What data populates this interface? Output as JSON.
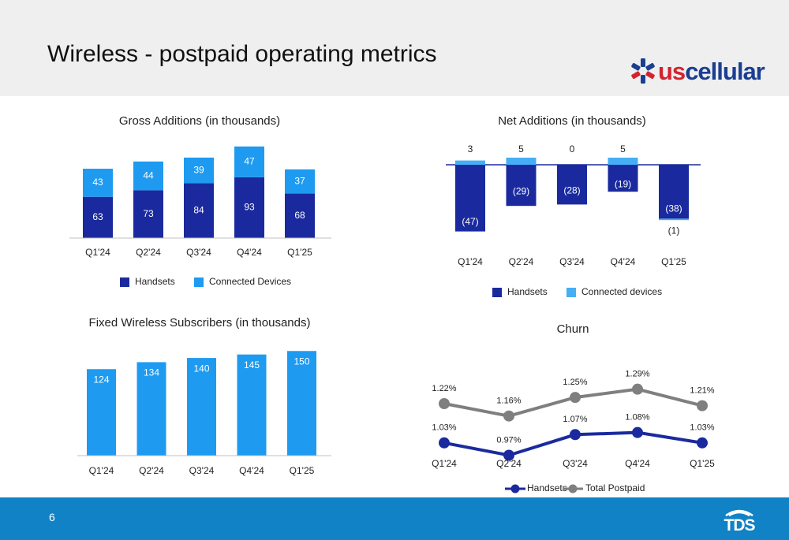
{
  "page": {
    "title": "Wireless - postpaid operating metrics",
    "number": "6",
    "brand": {
      "logo_part1": "us",
      "logo_part2": "cellular",
      "footer_logo": "TDS"
    }
  },
  "colors": {
    "handsets": "#1a2a9e",
    "devices": "#1e9bf0",
    "devices_net": "#45aef5",
    "churn_handsets": "#1a2a9e",
    "churn_total": "#7f7f7f"
  },
  "chart_data": [
    {
      "type": "bar",
      "stacked": true,
      "title": "Gross Additions (in thousands)",
      "categories": [
        "Q1'24",
        "Q2'24",
        "Q3'24",
        "Q4'24",
        "Q1'25"
      ],
      "series": [
        {
          "name": "Handsets",
          "values": [
            63,
            73,
            84,
            93,
            68
          ],
          "labels": [
            "63",
            "73",
            "84",
            "93",
            "68"
          ]
        },
        {
          "name": "Connected Devices",
          "values": [
            43,
            44,
            39,
            47,
            37
          ],
          "labels": [
            "43",
            "44",
            "39",
            "47",
            "37"
          ]
        }
      ],
      "legend": "bottom"
    },
    {
      "type": "bar",
      "stacked": true,
      "title": "Net Additions (in thousands)",
      "categories": [
        "Q1'24",
        "Q2'24",
        "Q3'24",
        "Q4'24",
        "Q1'25"
      ],
      "series": [
        {
          "name": "Handsets",
          "values": [
            -47,
            -29,
            -28,
            -19,
            -38
          ],
          "labels": [
            "(47)",
            "(29)",
            "(28)",
            "(19)",
            "(38)"
          ]
        },
        {
          "name": "Connected devices",
          "values": [
            3,
            5,
            0,
            5,
            -1
          ],
          "labels": [
            "3",
            "5",
            "0",
            "5",
            "(1)"
          ]
        }
      ],
      "legend": "bottom"
    },
    {
      "type": "bar",
      "title": "Fixed Wireless Subscribers (in thousands)",
      "categories": [
        "Q1'24",
        "Q2'24",
        "Q3'24",
        "Q4'24",
        "Q1'25"
      ],
      "values": [
        124,
        134,
        140,
        145,
        150
      ],
      "labels": [
        "124",
        "134",
        "140",
        "145",
        "150"
      ]
    },
    {
      "type": "line",
      "title": "Churn",
      "categories": [
        "Q1'24",
        "Q2'24",
        "Q3'24",
        "Q4'24",
        "Q1'25"
      ],
      "series": [
        {
          "name": "Handsets",
          "values": [
            1.03,
            0.97,
            1.07,
            1.08,
            1.03
          ],
          "labels": [
            "1.03%",
            "0.97%",
            "1.07%",
            "1.08%",
            "1.03%"
          ]
        },
        {
          "name": "Total Postpaid",
          "values": [
            1.22,
            1.16,
            1.25,
            1.29,
            1.21
          ],
          "labels": [
            "1.22%",
            "1.16%",
            "1.25%",
            "1.29%",
            "1.21%"
          ]
        }
      ],
      "legend": "bottom"
    }
  ]
}
